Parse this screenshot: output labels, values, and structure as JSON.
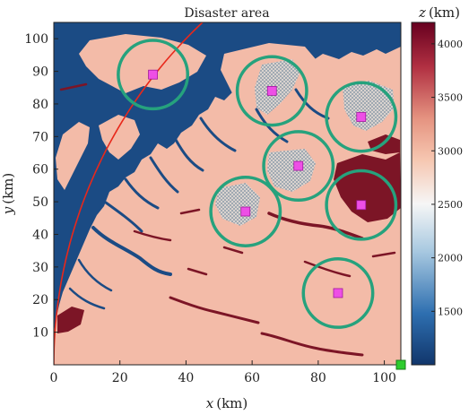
{
  "chart_data": {
    "type": "heatmap",
    "title": "Disaster area",
    "xlabel": "x (km)",
    "ylabel": "y (km)",
    "xlabel_var": "x",
    "ylabel_var": "y",
    "axis_unit": "(km)",
    "xlim": [
      0,
      105
    ],
    "ylim": [
      0,
      105
    ],
    "xticks": [
      0,
      20,
      40,
      60,
      80,
      100
    ],
    "yticks": [
      10,
      20,
      30,
      40,
      50,
      60,
      70,
      80,
      90,
      100
    ],
    "colorbar": {
      "label": "z (km)",
      "label_var": "z",
      "label_unit": "(km)",
      "range": [
        1000,
        4200
      ],
      "ticks": [
        1500,
        2000,
        2500,
        3000,
        3500,
        4000
      ],
      "colors": [
        "#11366b",
        "#2e6fb0",
        "#a7c8e0",
        "#f6f6f6",
        "#f6c6b0",
        "#e59380",
        "#b13042",
        "#67001f"
      ],
      "stops": [
        0,
        0.15,
        0.33,
        0.47,
        0.6,
        0.72,
        0.87,
        1
      ]
    },
    "colors": {
      "water": "#1b4b84",
      "land": "#f3bba8",
      "ridge": "#7c1526",
      "ring": "#26a27d",
      "target": "#ee4fe6",
      "path": "#e8281b",
      "depot": "#2ecc2e",
      "hatch": "#9aa9b4"
    },
    "targets": [
      {
        "x": 30,
        "y": 89,
        "r": 10.5
      },
      {
        "x": 66,
        "y": 84,
        "r": 10.5
      },
      {
        "x": 93,
        "y": 76,
        "r": 10.5
      },
      {
        "x": 74,
        "y": 61,
        "r": 10.5
      },
      {
        "x": 58,
        "y": 47,
        "r": 10.5
      },
      {
        "x": 93,
        "y": 49,
        "r": 10.5
      },
      {
        "x": 86,
        "y": 22,
        "r": 10.5
      }
    ],
    "depot": {
      "x": 105,
      "y": 0
    },
    "path_curve": {
      "center_x": 145,
      "center_y": 0,
      "radius": 145
    }
  }
}
